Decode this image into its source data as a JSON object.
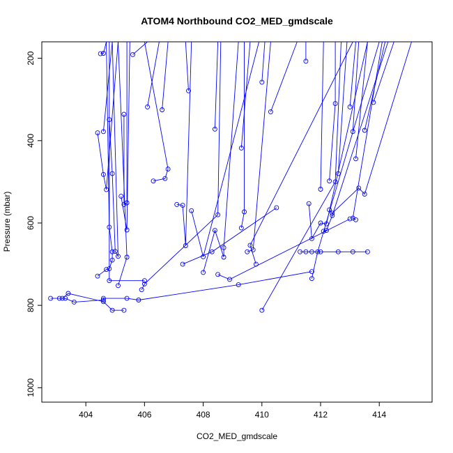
{
  "chart_data": {
    "type": "line",
    "title": "ATOM4 Northbound CO2_MED_gmdscale",
    "xlabel": "CO2_MED_gmdscale",
    "ylabel": "Pressure (mbar)",
    "xlim": [
      402.5,
      415.8
    ],
    "ylim": [
      1035,
      160
    ],
    "y_reversed": true,
    "x_ticks": [
      404,
      406,
      408,
      410,
      412,
      414
    ],
    "y_ticks": [
      200,
      400,
      600,
      800,
      1000
    ],
    "grid": false,
    "color": "#0000ff",
    "series": [
      {
        "points": [
          [
            402.8,
            783
          ],
          [
            403.1,
            783
          ],
          [
            403.3,
            783
          ],
          [
            403.6,
            792
          ],
          [
            404.6,
            787
          ],
          [
            404.6,
            783
          ],
          [
            405.4,
            783
          ],
          [
            405.8,
            787
          ],
          [
            409.2,
            750
          ],
          [
            411.7,
            718
          ]
        ]
      },
      {
        "points": [
          [
            403.2,
            783
          ],
          [
            403.4,
            771
          ],
          [
            404.6,
            791
          ],
          [
            404.9,
            812
          ],
          [
            405.3,
            812
          ]
        ]
      },
      {
        "points": [
          [
            404.4,
            381
          ],
          [
            404.6,
            482
          ],
          [
            404.7,
            519
          ],
          [
            405.1,
            160
          ]
        ]
      },
      {
        "points": [
          [
            404.5,
            189
          ],
          [
            404.6,
            188
          ],
          [
            404.7,
            160
          ]
        ]
      },
      {
        "points": [
          [
            404.4,
            729
          ],
          [
            404.7,
            713
          ],
          [
            404.8,
            711
          ],
          [
            404.9,
            690
          ],
          [
            404.9,
            670
          ],
          [
            404.8,
            610
          ],
          [
            404.7,
            160
          ]
        ]
      },
      {
        "points": [
          [
            404.6,
            378
          ],
          [
            404.9,
            160
          ]
        ]
      },
      {
        "points": [
          [
            404.8,
            349
          ],
          [
            404.9,
            480
          ],
          [
            405.0,
            669
          ],
          [
            405.1,
            681
          ],
          [
            404.9,
            160
          ]
        ]
      },
      {
        "points": [
          [
            405.1,
            752
          ],
          [
            405.4,
            683
          ],
          [
            405.1,
            160
          ]
        ]
      },
      {
        "points": [
          [
            405.2,
            535
          ],
          [
            405.4,
            617
          ],
          [
            405.5,
            160
          ]
        ]
      },
      {
        "points": [
          [
            405.3,
            336
          ],
          [
            405.3,
            555
          ],
          [
            405.4,
            551
          ],
          [
            405.4,
            160
          ]
        ]
      },
      {
        "points": [
          [
            405.6,
            191
          ],
          [
            406.1,
            160
          ]
        ]
      },
      {
        "points": [
          [
            405.9,
            762
          ],
          [
            406.0,
            748
          ],
          [
            408.5,
            580
          ],
          [
            408.6,
            160
          ]
        ]
      },
      {
        "points": [
          [
            406.1,
            318
          ],
          [
            406.5,
            160
          ]
        ]
      },
      {
        "points": [
          [
            406.3,
            498
          ],
          [
            406.7,
            492
          ],
          [
            406.8,
            469
          ],
          [
            406.0,
            160
          ]
        ]
      },
      {
        "points": [
          [
            406.6,
            325
          ],
          [
            406.8,
            160
          ]
        ]
      },
      {
        "points": [
          [
            407.1,
            555
          ],
          [
            407.3,
            557
          ],
          [
            407.4,
            655
          ],
          [
            407.6,
            160
          ]
        ]
      },
      {
        "points": [
          [
            407.3,
            700
          ],
          [
            408.3,
            670
          ],
          [
            410.5,
            563
          ]
        ]
      },
      {
        "points": [
          [
            407.5,
            279
          ],
          [
            407.4,
            160
          ]
        ]
      },
      {
        "points": [
          [
            407.6,
            570
          ],
          [
            408.0,
            682
          ],
          [
            409.9,
            160
          ]
        ]
      },
      {
        "points": [
          [
            408.0,
            720
          ],
          [
            408.4,
            618
          ],
          [
            408.7,
            683
          ],
          [
            408.7,
            660
          ],
          [
            409.2,
            160
          ]
        ]
      },
      {
        "points": [
          [
            408.4,
            372
          ],
          [
            408.5,
            160
          ]
        ]
      },
      {
        "points": [
          [
            408.5,
            725
          ],
          [
            408.9,
            737
          ],
          [
            413.0,
            590
          ]
        ]
      },
      {
        "points": [
          [
            409.3,
            612
          ],
          [
            409.4,
            573
          ],
          [
            409.4,
            160
          ]
        ]
      },
      {
        "points": [
          [
            409.3,
            418
          ],
          [
            409.6,
            160
          ]
        ]
      },
      {
        "points": [
          [
            409.5,
            670
          ],
          [
            409.7,
            665
          ],
          [
            410.3,
            160
          ]
        ]
      },
      {
        "points": [
          [
            409.8,
            700
          ],
          [
            409.6,
            654
          ],
          [
            413.1,
            160
          ]
        ]
      },
      {
        "points": [
          [
            410.0,
            812
          ],
          [
            412.5,
            500
          ],
          [
            412.7,
            160
          ]
        ]
      },
      {
        "points": [
          [
            410.0,
            258
          ],
          [
            410.1,
            160
          ]
        ]
      },
      {
        "points": [
          [
            410.3,
            330
          ],
          [
            411.2,
            160
          ]
        ]
      },
      {
        "points": [
          [
            411.3,
            670
          ],
          [
            411.5,
            670
          ],
          [
            411.7,
            670
          ],
          [
            412.0,
            670
          ],
          [
            412.6,
            670
          ],
          [
            413.1,
            670
          ],
          [
            413.6,
            670
          ]
        ]
      },
      {
        "points": [
          [
            411.5,
            207
          ],
          [
            411.5,
            160
          ]
        ]
      },
      {
        "points": [
          [
            411.6,
            553
          ],
          [
            411.7,
            638
          ],
          [
            412.0,
            600
          ],
          [
            412.2,
            602
          ],
          [
            413.6,
            160
          ]
        ]
      },
      {
        "points": [
          [
            411.7,
            735
          ],
          [
            411.9,
            670
          ],
          [
            414.0,
            160
          ]
        ]
      },
      {
        "points": [
          [
            412.0,
            518
          ],
          [
            412.1,
            160
          ]
        ]
      },
      {
        "points": [
          [
            412.3,
            568
          ],
          [
            412.4,
            576
          ],
          [
            413.3,
            515
          ],
          [
            413.5,
            530
          ],
          [
            415.1,
            160
          ]
        ]
      },
      {
        "points": [
          [
            412.3,
            498
          ],
          [
            412.5,
            310
          ],
          [
            412.5,
            160
          ]
        ]
      },
      {
        "points": [
          [
            412.6,
            480
          ],
          [
            412.9,
            160
          ]
        ]
      },
      {
        "points": [
          [
            413.0,
            318
          ],
          [
            413.2,
            160
          ]
        ]
      },
      {
        "points": [
          [
            413.1,
            378
          ],
          [
            413.3,
            160
          ]
        ]
      },
      {
        "points": [
          [
            413.2,
            444
          ],
          [
            413.6,
            160
          ]
        ]
      },
      {
        "points": [
          [
            413.5,
            375
          ],
          [
            414.2,
            160
          ]
        ]
      },
      {
        "points": [
          [
            413.8,
            307
          ],
          [
            414.5,
            160
          ]
        ]
      },
      {
        "points": [
          [
            412.1,
            620
          ],
          [
            412.2,
            618
          ],
          [
            412.4,
            582
          ],
          [
            414.3,
            160
          ]
        ]
      },
      {
        "points": [
          [
            413.2,
            592
          ],
          [
            413.1,
            588
          ],
          [
            414.1,
            160
          ]
        ]
      },
      {
        "points": [
          [
            406.0,
            740
          ],
          [
            404.8,
            740
          ],
          [
            404.8,
            160
          ]
        ]
      }
    ]
  }
}
